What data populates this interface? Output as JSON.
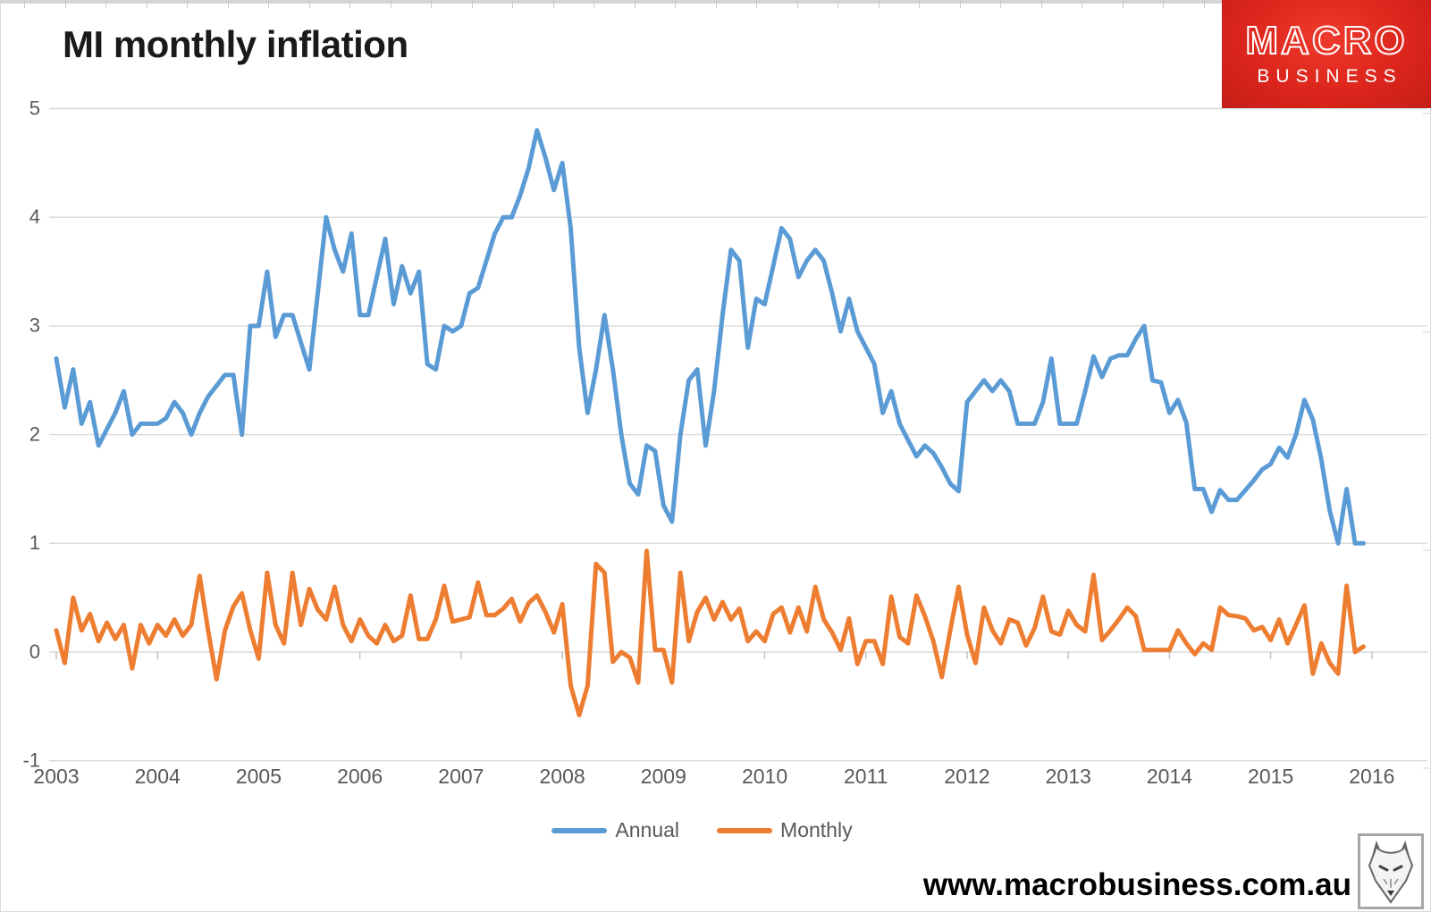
{
  "header": {
    "title": "MI monthly inflation",
    "logo": {
      "line1": "MACRO",
      "line2": "BUSINESS",
      "bg_color": "#d6221a",
      "text_color": "#ffffff"
    }
  },
  "footer": {
    "url": "www.macrobusiness.com.au"
  },
  "legend": {
    "items": [
      "Annual",
      "Monthly"
    ]
  },
  "chart_data": {
    "type": "line",
    "title": "MI monthly inflation",
    "xlabel": "",
    "ylabel": "",
    "x_start": "2003-01",
    "x_end": "2015-12",
    "points_per_year": 12,
    "x_tick_labels": [
      "2003",
      "2004",
      "2005",
      "2006",
      "2007",
      "2008",
      "2009",
      "2010",
      "2011",
      "2012",
      "2013",
      "2014",
      "2015",
      "2016"
    ],
    "y_ticks": [
      5,
      4,
      3,
      2,
      1,
      0,
      -1
    ],
    "ylim": [
      -1,
      5
    ],
    "grid": true,
    "grid_color": "#d9d9d9",
    "axis_label_color": "#595959",
    "legend_position": "bottom",
    "series": [
      {
        "name": "Annual",
        "color": "#5B9BD5",
        "values": [
          2.7,
          2.25,
          2.6,
          2.1,
          2.3,
          1.9,
          2.05,
          2.2,
          2.4,
          2.0,
          2.1,
          2.1,
          2.1,
          2.15,
          2.3,
          2.2,
          2.0,
          2.2,
          2.35,
          2.45,
          2.55,
          2.55,
          2.0,
          3.0,
          3.0,
          3.5,
          2.9,
          3.1,
          3.1,
          2.85,
          2.6,
          3.3,
          4.0,
          3.7,
          3.5,
          3.85,
          3.1,
          3.1,
          3.45,
          3.8,
          3.2,
          3.55,
          3.3,
          3.5,
          2.65,
          2.6,
          3.0,
          2.95,
          3.0,
          3.3,
          3.35,
          3.6,
          3.85,
          4.0,
          4.0,
          4.2,
          4.45,
          4.8,
          4.55,
          4.25,
          4.5,
          3.9,
          2.8,
          2.2,
          2.6,
          3.1,
          2.6,
          2.0,
          1.55,
          1.45,
          1.9,
          1.85,
          1.35,
          1.2,
          2.0,
          2.5,
          2.6,
          1.9,
          2.4,
          3.1,
          3.7,
          3.6,
          2.8,
          3.25,
          3.2,
          3.55,
          3.9,
          3.8,
          3.45,
          3.6,
          3.7,
          3.6,
          3.3,
          2.95,
          3.25,
          2.95,
          2.8,
          2.65,
          2.2,
          2.4,
          2.1,
          1.95,
          1.8,
          1.9,
          1.83,
          1.7,
          1.55,
          1.48,
          2.3,
          2.4,
          2.5,
          2.4,
          2.5,
          2.4,
          2.1,
          2.1,
          2.1,
          2.3,
          2.7,
          2.1,
          2.1,
          2.1,
          2.4,
          2.72,
          2.53,
          2.7,
          2.73,
          2.73,
          2.88,
          3.0,
          2.5,
          2.48,
          2.2,
          2.32,
          2.11,
          1.5,
          1.5,
          1.29,
          1.49,
          1.4,
          1.4,
          1.49,
          1.58,
          1.68,
          1.73,
          1.88,
          1.79,
          2.0,
          2.32,
          2.14,
          1.77,
          1.3,
          1.0,
          1.5,
          1.0,
          1.0
        ]
      },
      {
        "name": "Monthly",
        "color": "#ED7D31",
        "values": [
          0.2,
          -0.1,
          0.5,
          0.2,
          0.35,
          0.1,
          0.27,
          0.12,
          0.25,
          -0.15,
          0.25,
          0.08,
          0.25,
          0.15,
          0.3,
          0.15,
          0.25,
          0.7,
          0.2,
          -0.25,
          0.2,
          0.42,
          0.54,
          0.2,
          -0.06,
          0.73,
          0.25,
          0.08,
          0.73,
          0.25,
          0.58,
          0.39,
          0.3,
          0.6,
          0.25,
          0.1,
          0.3,
          0.15,
          0.08,
          0.25,
          0.1,
          0.15,
          0.52,
          0.12,
          0.12,
          0.3,
          0.61,
          0.28,
          0.3,
          0.32,
          0.64,
          0.34,
          0.34,
          0.4,
          0.49,
          0.28,
          0.45,
          0.52,
          0.37,
          0.18,
          0.44,
          -0.31,
          -0.58,
          -0.31,
          0.81,
          0.73,
          -0.09,
          0.0,
          -0.05,
          -0.28,
          0.93,
          0.02,
          0.02,
          -0.28,
          0.73,
          0.1,
          0.37,
          0.5,
          0.3,
          0.46,
          0.3,
          0.4,
          0.1,
          0.19,
          0.1,
          0.35,
          0.41,
          0.18,
          0.41,
          0.19,
          0.6,
          0.3,
          0.18,
          0.02,
          0.31,
          -0.11,
          0.1,
          0.1,
          -0.11,
          0.51,
          0.14,
          0.08,
          0.52,
          0.33,
          0.1,
          -0.23,
          0.2,
          0.6,
          0.16,
          -0.1,
          0.41,
          0.2,
          0.08,
          0.3,
          0.27,
          0.06,
          0.22,
          0.51,
          0.19,
          0.16,
          0.38,
          0.25,
          0.19,
          0.71,
          0.11,
          0.2,
          0.3,
          0.41,
          0.33,
          0.02,
          0.02,
          0.02,
          0.02,
          0.2,
          0.08,
          -0.02,
          0.08,
          0.02,
          0.41,
          0.34,
          0.33,
          0.31,
          0.2,
          0.23,
          0.11,
          0.3,
          0.08,
          0.25,
          0.43,
          -0.2,
          0.08,
          -0.1,
          -0.2,
          0.61,
          0.0,
          0.05
        ]
      }
    ]
  }
}
